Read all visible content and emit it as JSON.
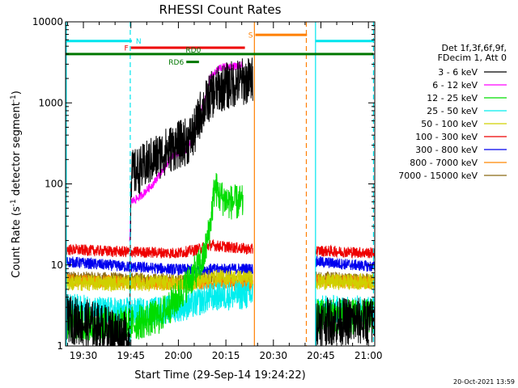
{
  "chart_data": {
    "type": "line",
    "title": "RHESSI Count Rates",
    "xlabel": "Start Time (29-Sep-14 19:24:22)",
    "ylabel_parts": [
      "Count Rate (s",
      "-1",
      " detector segment",
      "-1",
      ")"
    ],
    "x_unit": "minutes_of_day",
    "xlim": [
      1164.37,
      1262.0
    ],
    "ylim": [
      1,
      10000
    ],
    "yscale": "log",
    "x_ticks": [
      {
        "value": 1170,
        "label": "19:30"
      },
      {
        "value": 1185,
        "label": "19:45"
      },
      {
        "value": 1200,
        "label": "20:00"
      },
      {
        "value": 1215,
        "label": "20:15"
      },
      {
        "value": 1230,
        "label": "20:30"
      },
      {
        "value": 1245,
        "label": "20:45"
      },
      {
        "value": 1260,
        "label": "21:00"
      }
    ],
    "x_minor_step": 5,
    "y_ticks": [
      {
        "value": 1,
        "label": "1"
      },
      {
        "value": 10,
        "label": "10"
      },
      {
        "value": 100,
        "label": "100"
      },
      {
        "value": 1000,
        "label": "1000"
      },
      {
        "value": 10000,
        "label": "10000"
      }
    ],
    "data_gaps": [
      [
        1223.8,
        1243.0
      ]
    ],
    "legend": {
      "placement": "right",
      "header": [
        "Det 1f,3f,6f,9f,",
        "FDecim 1, Att 0"
      ],
      "entries": [
        {
          "label": "3 - 6 keV",
          "color": "#000000"
        },
        {
          "label": "6 - 12 keV",
          "color": "#ff00ff"
        },
        {
          "label": "12 - 25 keV",
          "color": "#00dd00"
        },
        {
          "label": "25 - 50 keV",
          "color": "#00eeee"
        },
        {
          "label": "50 - 100 keV",
          "color": "#d0d000"
        },
        {
          "label": "100 - 300 keV",
          "color": "#ee0000"
        },
        {
          "label": "300 - 800 keV",
          "color": "#0000ee"
        },
        {
          "label": "800 - 7000 keV",
          "color": "#ff8800"
        },
        {
          "label": "7000 - 15000 keV",
          "color": "#8b6914"
        }
      ]
    },
    "series": [
      {
        "name": "3 - 6 keV",
        "color": "#000000",
        "noise": 0.3,
        "points": [
          [
            1164.4,
            2.2
          ],
          [
            1176,
            1.7
          ],
          [
            1184,
            1.3
          ],
          [
            1184.6,
            1.1
          ],
          [
            1185,
            130
          ],
          [
            1188,
            150
          ],
          [
            1192,
            200
          ],
          [
            1198,
            280
          ],
          [
            1203,
            340
          ],
          [
            1205,
            420
          ],
          [
            1207,
            750
          ],
          [
            1210,
            1200
          ],
          [
            1213,
            1500
          ],
          [
            1216,
            1650
          ],
          [
            1219,
            1800
          ],
          [
            1223.5,
            1900
          ],
          [
            1243.3,
            2.0
          ],
          [
            1262,
            2.0
          ]
        ]
      },
      {
        "name": "6 - 12 keV",
        "color": "#ff00ff",
        "noise": 0.05,
        "points": [
          [
            1184.6,
            18
          ],
          [
            1185,
            60
          ],
          [
            1188,
            70
          ],
          [
            1192,
            100
          ],
          [
            1198,
            220
          ],
          [
            1203,
            260
          ],
          [
            1205,
            450
          ],
          [
            1208,
            1000
          ],
          [
            1210,
            2000
          ],
          [
            1213,
            2700
          ],
          [
            1216,
            2800
          ],
          [
            1219,
            2850
          ],
          [
            1220.5,
            2900
          ]
        ]
      },
      {
        "name": "12 - 25 keV",
        "color": "#00dd00",
        "noise": 0.22,
        "points": [
          [
            1164.4,
            2.0
          ],
          [
            1176,
            1.8
          ],
          [
            1186,
            1.9
          ],
          [
            1194,
            2.3
          ],
          [
            1200,
            4
          ],
          [
            1203,
            6
          ],
          [
            1206,
            9
          ],
          [
            1208,
            12
          ],
          [
            1210,
            30
          ],
          [
            1211.5,
            95
          ],
          [
            1213,
            70
          ],
          [
            1216,
            60
          ],
          [
            1220.5,
            58
          ],
          [
            1243.3,
            2.3
          ],
          [
            1262,
            2.3
          ]
        ]
      },
      {
        "name": "25 - 50 keV",
        "color": "#00eeee",
        "noise": 0.18,
        "points": [
          [
            1164.4,
            3.0
          ],
          [
            1176,
            2.7
          ],
          [
            1186,
            2.6
          ],
          [
            1196,
            2.8
          ],
          [
            1204,
            3.2
          ],
          [
            1210,
            4.0
          ],
          [
            1216,
            4.2
          ],
          [
            1223.5,
            4.2
          ],
          [
            1243.3,
            2.8
          ],
          [
            1262,
            2.8
          ]
        ]
      },
      {
        "name": "50 - 100 keV",
        "color": "#d0d000",
        "noise": 0.1,
        "points": [
          [
            1164.4,
            6.0
          ],
          [
            1204,
            6.0
          ],
          [
            1210,
            7.0
          ],
          [
            1216,
            7.0
          ],
          [
            1223.5,
            6.8
          ],
          [
            1243.3,
            6.2
          ],
          [
            1262,
            6.2
          ]
        ]
      },
      {
        "name": "100 - 300 keV",
        "color": "#ee0000",
        "noise": 0.07,
        "points": [
          [
            1164.4,
            15.5
          ],
          [
            1184,
            14.5
          ],
          [
            1200,
            14
          ],
          [
            1206,
            15.5
          ],
          [
            1210,
            17.5
          ],
          [
            1223.5,
            15.5
          ],
          [
            1243.3,
            15
          ],
          [
            1262,
            14
          ]
        ]
      },
      {
        "name": "300 - 800 keV",
        "color": "#0000ee",
        "noise": 0.07,
        "points": [
          [
            1164.4,
            11
          ],
          [
            1184,
            9.5
          ],
          [
            1200,
            8.8
          ],
          [
            1206,
            8.8
          ],
          [
            1223.5,
            9
          ],
          [
            1243.3,
            11
          ],
          [
            1262,
            9.5
          ]
        ]
      },
      {
        "name": "800 - 7000 keV",
        "color": "#ff8800",
        "noise": 0.08,
        "points": [
          [
            1164.4,
            6.5
          ],
          [
            1200,
            5.8
          ],
          [
            1210,
            6.0
          ],
          [
            1223.5,
            5.6
          ],
          [
            1243.3,
            6.5
          ],
          [
            1262,
            6.0
          ]
        ]
      },
      {
        "name": "7000 - 15000 keV",
        "color": "#8b6914",
        "noise": 0.08,
        "points": [
          [
            1164.4,
            7.0
          ],
          [
            1200,
            6.5
          ],
          [
            1210,
            6.8
          ],
          [
            1223.5,
            6.3
          ],
          [
            1243.3,
            7.0
          ],
          [
            1262,
            6.5
          ]
        ]
      }
    ],
    "attenuator_bars": [
      {
        "label": "N",
        "color": "#00e5ee",
        "segments": [
          [
            1164.37,
            1185.3
          ],
          [
            1243.4,
            1261.6
          ]
        ],
        "y": 5800
      },
      {
        "label": "S",
        "color": "#ff7f00",
        "segments": [
          [
            1224.3,
            1240.6
          ]
        ],
        "y": 6900
      },
      {
        "label": "F",
        "color": "#ee0000",
        "segments": [
          [
            1185.0,
            1221.0
          ]
        ],
        "y": 4800
      },
      {
        "label": "RD0",
        "color": "#007700",
        "segments": [
          [
            1164.37,
            1261.6
          ]
        ],
        "y": 4000
      },
      {
        "label": "RD6",
        "color": "#007700",
        "segments": [
          [
            1202.5,
            1206.5
          ]
        ],
        "y": 3200
      }
    ],
    "vertical_markers": [
      {
        "x": 1164.6,
        "color": "#00e5ee",
        "style": "solid"
      },
      {
        "x": 1184.8,
        "color": "#00e5ee",
        "style": "dashed"
      },
      {
        "x": 1224.0,
        "color": "#ff7f00",
        "style": "solid"
      },
      {
        "x": 1240.4,
        "color": "#ff7f00",
        "style": "dashed"
      },
      {
        "x": 1243.3,
        "color": "#00e5ee",
        "style": "solid"
      },
      {
        "x": 1261.6,
        "color": "#00e5ee",
        "style": "dashed"
      }
    ],
    "timestamp": "20-Oct-2021 13:59"
  }
}
